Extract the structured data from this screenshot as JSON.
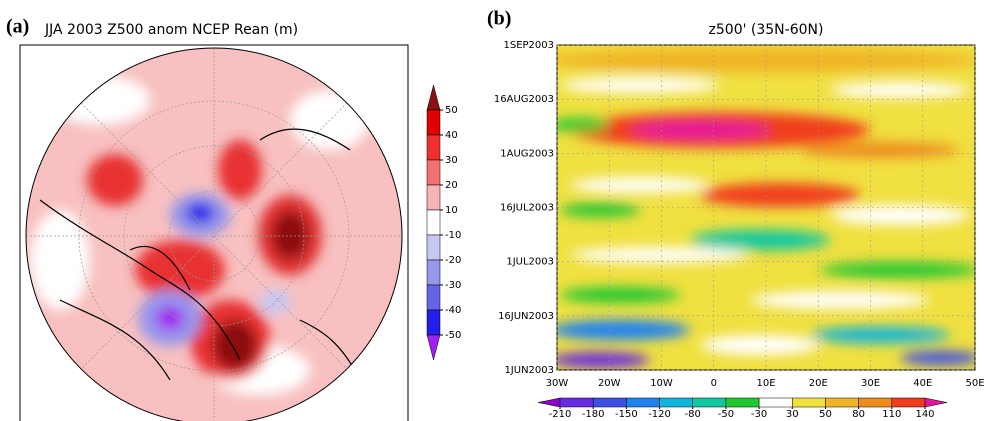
{
  "panels": [
    {
      "label": "(a)",
      "title": "JJA 2003 Z500 anom NCEP Rean (m)",
      "colorbar": {
        "ticks": [
          50,
          40,
          30,
          20,
          10,
          -10,
          -20,
          -30,
          -40,
          -50
        ],
        "colors": [
          "#8b1010",
          "#e00000",
          "#f03030",
          "#f47070",
          "#f8b4b4",
          "#ffffff",
          "#c8c8f4",
          "#9696ec",
          "#6464e8",
          "#2020e8",
          "#a020f0"
        ]
      }
    },
    {
      "label": "(b)",
      "title": "z500' (35N-60N)",
      "yticks": [
        "1SEP2003",
        "16AUG2003",
        "1AUG2003",
        "16JUL2003",
        "1JUL2003",
        "16JUN2003",
        "1JUN2003"
      ],
      "xticks": [
        "30W",
        "20W",
        "10W",
        "0",
        "10E",
        "20E",
        "30E",
        "40E",
        "50E"
      ],
      "colorbar": {
        "ticks": [
          -210,
          -180,
          -150,
          -120,
          -80,
          -50,
          -30,
          30,
          50,
          80,
          110,
          140
        ],
        "colors": [
          "#8a00c8",
          "#6a2be0",
          "#3c50e6",
          "#1e82f0",
          "#10b4dc",
          "#10c8a0",
          "#20c830",
          "#ffffff",
          "#f0e040",
          "#f0b428",
          "#f08c1e",
          "#f03c1e",
          "#e6149a"
        ]
      }
    }
  ]
}
